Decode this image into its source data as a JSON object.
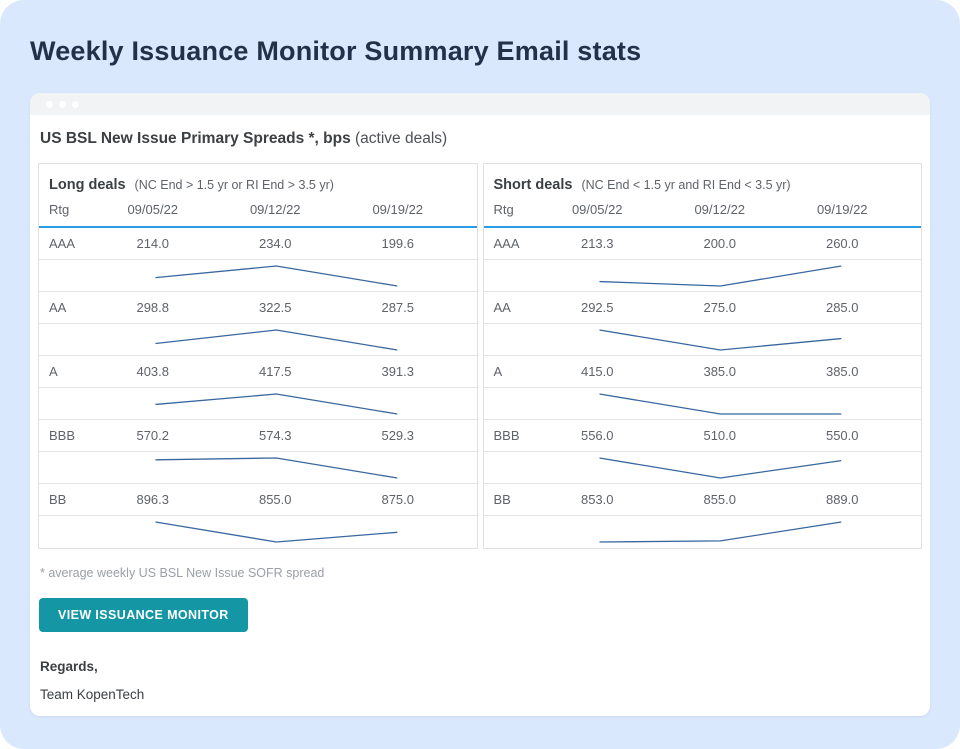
{
  "page": {
    "title": "Weekly Issuance Monitor Summary Email stats"
  },
  "card": {
    "heading": {
      "bold": "US BSL New Issue Primary Spreads *, bps",
      "light": "(active deals)"
    },
    "footnote": "* average weekly US BSL New Issue SOFR spread",
    "button": {
      "label": "VIEW ISSUANCE MONITOR"
    },
    "signoff": "Regards,",
    "signature": "Team KopenTech"
  },
  "tables": [
    {
      "title": "Long deals",
      "subtitle": "(NC End > 1.5 yr or RI End > 3.5 yr)",
      "columns": [
        "Rtg",
        "09/05/22",
        "09/12/22",
        "09/19/22"
      ],
      "rows": [
        {
          "rating": "AAA",
          "values": [
            214.0,
            234.0,
            199.6
          ]
        },
        {
          "rating": "AA",
          "values": [
            298.8,
            322.5,
            287.5
          ]
        },
        {
          "rating": "A",
          "values": [
            403.8,
            417.5,
            391.3
          ]
        },
        {
          "rating": "BBB",
          "values": [
            570.2,
            574.3,
            529.3
          ]
        },
        {
          "rating": "BB",
          "values": [
            896.3,
            855.0,
            875.0
          ]
        }
      ]
    },
    {
      "title": "Short deals",
      "subtitle": "(NC End < 1.5 yr and RI End < 3.5 yr)",
      "columns": [
        "Rtg",
        "09/05/22",
        "09/12/22",
        "09/19/22"
      ],
      "rows": [
        {
          "rating": "AAA",
          "values": [
            213.3,
            200.0,
            260.0
          ]
        },
        {
          "rating": "AA",
          "values": [
            292.5,
            275.0,
            285.0
          ]
        },
        {
          "rating": "A",
          "values": [
            415.0,
            385.0,
            385.0
          ]
        },
        {
          "rating": "BBB",
          "values": [
            556.0,
            510.0,
            550.0
          ]
        },
        {
          "rating": "BB",
          "values": [
            853.0,
            855.0,
            889.0
          ]
        }
      ]
    }
  ],
  "colors": {
    "page_bg": "#d9e8fc",
    "title_text": "#22304a",
    "card_bg": "#ffffff",
    "window_bar": "#f1f3f4",
    "accent_underline": "#2b9ce8",
    "sparkline": "#38679f",
    "table_border": "#e0e0e0",
    "text_primary": "#3c4043",
    "text_secondary": "#5f6368",
    "footnote_text": "#9aa0a6",
    "button_bg": "#1496a5",
    "button_text": "#ffffff"
  }
}
